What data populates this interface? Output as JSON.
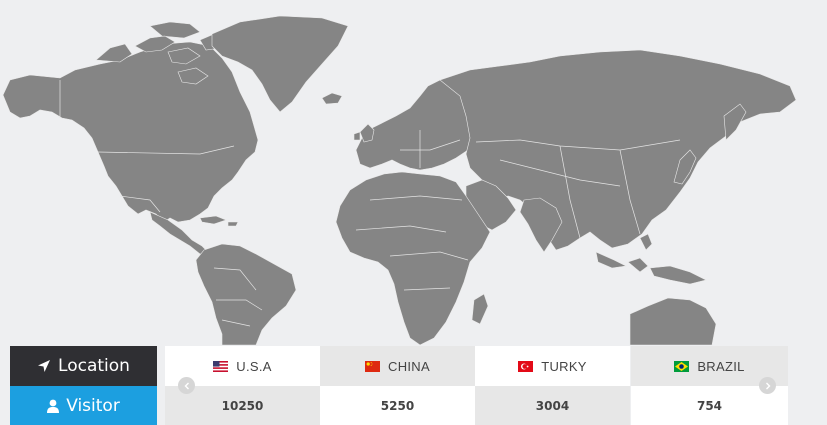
{
  "labels": {
    "location": "Location",
    "visitor": "Visitor"
  },
  "countries": [
    {
      "name": "U.S.A",
      "visitors": "10250",
      "flag": "flag-usa-icon"
    },
    {
      "name": "CHINA",
      "visitors": "5250",
      "flag": "flag-china-icon"
    },
    {
      "name": "TURKY",
      "visitors": "3004",
      "flag": "flag-turkey-icon"
    },
    {
      "name": "BRAZIL",
      "visitors": "754",
      "flag": "flag-brazil-icon"
    }
  ],
  "colors": {
    "location_bg": "#2f2f33",
    "visitor_bg": "#1c9fe0",
    "map_land": "#858585",
    "page_bg": "#eeeff1"
  },
  "icons": {
    "location": "location-arrow-icon",
    "visitor": "user-icon",
    "prev": "chevron-left-icon",
    "next": "chevron-right-icon"
  }
}
